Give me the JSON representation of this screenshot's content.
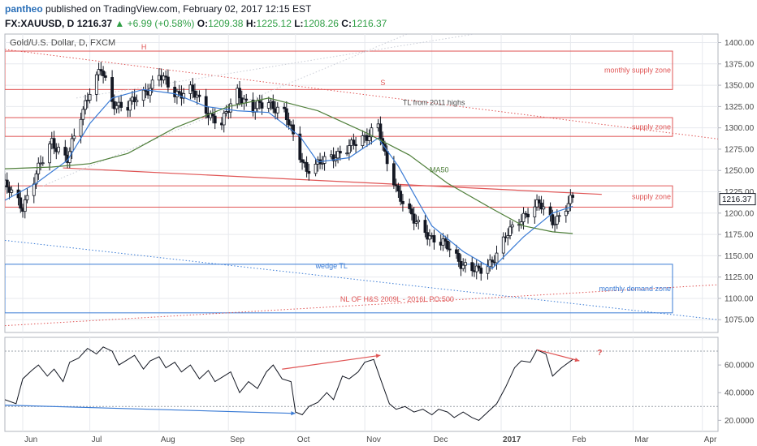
{
  "header": {
    "author": "pantheo",
    "published_text": "published on TradingView.com, February 02, 2017 12:15 EST",
    "symbol": "FX:XAUUSD, D",
    "last": "1216.37",
    "change": "+6.99 (+0.58%)",
    "o_label": "O:",
    "o_value": "1209.38",
    "h_label": "H:",
    "h_value": "1225.12",
    "l_label": "L:",
    "l_value": "1208.26",
    "c_label": "C:",
    "c_value": "1216.37",
    "up_arrow": "▲"
  },
  "colors": {
    "bull": "#ffffff",
    "bear": "#131722",
    "wick": "#131722",
    "ma_fast": "#3a7bd5",
    "ma50": "#4f7f3a",
    "supply": "#e05555",
    "demand": "#3a7bd5",
    "grid": "#e7e9ee",
    "axis_text": "#4a4a4a",
    "last_price_box": "#ffffff"
  },
  "chart_data": [
    {
      "type": "candlestick",
      "title": "Gold/U.S. Dollar, D, FXCM",
      "y_ticks": [
        1075,
        1100,
        1125,
        1150,
        1175,
        1200,
        1225,
        1250,
        1275,
        1300,
        1325,
        1350,
        1375,
        1400
      ],
      "y_tick_labels": [
        "1075.00",
        "1100.00",
        "1125.00",
        "1150.00",
        "1175.00",
        "1200.00",
        "1225.00",
        "1250.00",
        "1275.00",
        "1300.00",
        "1325.00",
        "1350.00",
        "1375.00",
        "1400.00"
      ],
      "ylim": [
        1060,
        1410
      ],
      "last_price_label": "1216.37",
      "last_price": 1216.37,
      "x_tick_labels": [
        "Jun",
        "Jul",
        "Aug",
        "Sep",
        "Oct",
        "Nov",
        "Dec",
        "2017",
        "Feb",
        "Mar",
        "Apr"
      ],
      "x_tick_dates": [
        "2016-06-01",
        "2016-07-01",
        "2016-08-01",
        "2016-09-01",
        "2016-10-01",
        "2016-11-01",
        "2016-12-01",
        "2017-01-01",
        "2017-02-01",
        "2017-03-01",
        "2017-04-01"
      ],
      "x_range": [
        "2016-05-24",
        "2017-04-08"
      ],
      "close_series": {
        "dates": [
          "2016-05-24",
          "2016-06-01",
          "2016-06-07",
          "2016-06-14",
          "2016-06-21",
          "2016-06-27",
          "2016-07-01",
          "2016-07-06",
          "2016-07-11",
          "2016-07-18",
          "2016-07-25",
          "2016-08-01",
          "2016-08-08",
          "2016-08-15",
          "2016-08-22",
          "2016-08-29",
          "2016-09-05",
          "2016-09-12",
          "2016-09-19",
          "2016-09-26",
          "2016-10-03",
          "2016-10-06",
          "2016-10-11",
          "2016-10-18",
          "2016-10-25",
          "2016-11-01",
          "2016-11-07",
          "2016-11-10",
          "2016-11-16",
          "2016-11-23",
          "2016-12-01",
          "2016-12-08",
          "2016-12-15",
          "2016-12-22",
          "2016-12-28",
          "2017-01-04",
          "2017-01-11",
          "2017-01-18",
          "2017-01-24",
          "2017-01-27",
          "2017-02-02"
        ],
        "values": [
          1232,
          1208,
          1245,
          1285,
          1262,
          1315,
          1345,
          1368,
          1330,
          1325,
          1340,
          1362,
          1340,
          1345,
          1320,
          1305,
          1342,
          1322,
          1330,
          1318,
          1268,
          1252,
          1256,
          1268,
          1276,
          1290,
          1303,
          1265,
          1225,
          1190,
          1172,
          1160,
          1140,
          1130,
          1145,
          1175,
          1198,
          1210,
          1192,
          1196,
          1216.37
        ]
      },
      "ma_fast": {
        "name": "",
        "dates": [
          "2016-05-24",
          "2016-06-07",
          "2016-06-21",
          "2016-07-01",
          "2016-07-11",
          "2016-07-25",
          "2016-08-08",
          "2016-08-22",
          "2016-09-05",
          "2016-09-19",
          "2016-10-03",
          "2016-10-11",
          "2016-10-25",
          "2016-11-07",
          "2016-11-16",
          "2016-12-01",
          "2016-12-15",
          "2016-12-28",
          "2017-01-11",
          "2017-01-24",
          "2017-02-02"
        ],
        "values": [
          1215,
          1235,
          1262,
          1305,
          1335,
          1345,
          1340,
          1325,
          1320,
          1318,
          1290,
          1260,
          1265,
          1288,
          1255,
          1185,
          1155,
          1135,
          1172,
          1200,
          1208
        ]
      },
      "ma50": {
        "name": "MA50",
        "dates": [
          "2016-05-24",
          "2016-06-14",
          "2016-07-01",
          "2016-07-18",
          "2016-08-08",
          "2016-09-01",
          "2016-09-19",
          "2016-10-11",
          "2016-11-01",
          "2016-11-21",
          "2016-12-08",
          "2016-12-28",
          "2017-01-11",
          "2017-01-24",
          "2017-02-02"
        ],
        "values": [
          1252,
          1254,
          1258,
          1270,
          1300,
          1325,
          1335,
          1320,
          1295,
          1268,
          1235,
          1205,
          1185,
          1178,
          1176
        ]
      },
      "zones": [
        {
          "label": "monthly supply zone",
          "low": 1345,
          "high": 1390,
          "color": "supply"
        },
        {
          "label": "supply zone",
          "low": 1290,
          "high": 1312,
          "color": "supply"
        },
        {
          "label": "supply zone",
          "low": 1207,
          "high": 1232,
          "color": "supply"
        },
        {
          "label": "monthly demand zone",
          "low": 1083,
          "high": 1140,
          "color": "demand"
        }
      ],
      "annotations": [
        {
          "text": "H",
          "date": "2016-07-24",
          "price": 1392,
          "color": "supply"
        },
        {
          "text": "S",
          "date": "2016-11-08",
          "price": 1350,
          "color": "supply"
        },
        {
          "text": "TL from 2011 highs",
          "date": "2016-11-18",
          "price": 1327,
          "color": "axis_text"
        },
        {
          "text": "MA50",
          "date": "2016-11-30",
          "price": 1248,
          "color": "ma50"
        },
        {
          "text": "wedge TL",
          "date": "2016-10-10",
          "price": 1135,
          "color": "demand"
        },
        {
          "text": "NL OF H&S 2009L - 2016L PO:500",
          "date": "2016-10-21",
          "price": 1096,
          "color": "supply"
        }
      ],
      "trendlines": [
        {
          "from": [
            "2016-05-24",
            1392
          ],
          "to": [
            "2017-04-08",
            1287
          ],
          "style": "dotted",
          "color": "supply"
        },
        {
          "from": [
            "2016-06-19",
            1253
          ],
          "to": [
            "2017-02-15",
            1222
          ],
          "style": "solid",
          "color": "supply"
        },
        {
          "from": [
            "2016-05-24",
            1068
          ],
          "to": [
            "2017-04-08",
            1116
          ],
          "style": "dotted",
          "color": "supply"
        },
        {
          "from": [
            "2016-05-24",
            1168
          ],
          "to": [
            "2017-04-08",
            1075
          ],
          "style": "dotted",
          "color": "demand"
        },
        {
          "from": [
            "2016-06-10",
            1232
          ],
          "to": [
            "2016-11-20",
            1410
          ],
          "style": "dotted",
          "color": "grid"
        },
        {
          "from": [
            "2016-06-25",
            1335
          ],
          "to": [
            "2016-12-20",
            1410
          ],
          "style": "dotted",
          "color": "grid"
        }
      ]
    },
    {
      "type": "line",
      "title": "",
      "ylim": [
        12,
        80
      ],
      "y_ticks": [
        20,
        40,
        60
      ],
      "y_tick_labels": [
        "20.0000",
        "40.0000",
        "60.0000"
      ],
      "levels": [
        70,
        30
      ],
      "series": [
        {
          "name": "",
          "x": [
            "2016-05-24",
            "2016-05-29",
            "2016-06-01",
            "2016-06-05",
            "2016-06-08",
            "2016-06-12",
            "2016-06-15",
            "2016-06-19",
            "2016-06-22",
            "2016-06-26",
            "2016-06-30",
            "2016-07-04",
            "2016-07-07",
            "2016-07-11",
            "2016-07-14",
            "2016-07-18",
            "2016-07-21",
            "2016-07-25",
            "2016-07-28",
            "2016-08-01",
            "2016-08-04",
            "2016-08-08",
            "2016-08-11",
            "2016-08-15",
            "2016-08-19",
            "2016-08-23",
            "2016-08-26",
            "2016-08-30",
            "2016-09-02",
            "2016-09-06",
            "2016-09-10",
            "2016-09-14",
            "2016-09-18",
            "2016-09-21",
            "2016-09-25",
            "2016-09-29",
            "2016-10-01",
            "2016-10-04",
            "2016-10-07",
            "2016-10-11",
            "2016-10-15",
            "2016-10-18",
            "2016-10-22",
            "2016-10-25",
            "2016-10-29",
            "2016-11-01",
            "2016-11-05",
            "2016-11-08",
            "2016-11-12",
            "2016-11-15",
            "2016-11-19",
            "2016-11-23",
            "2016-11-27",
            "2016-12-01",
            "2016-12-04",
            "2016-12-08",
            "2016-12-11",
            "2016-12-15",
            "2016-12-19",
            "2016-12-22",
            "2016-12-26",
            "2016-12-30",
            "2017-01-03",
            "2017-01-07",
            "2017-01-10",
            "2017-01-14",
            "2017-01-17",
            "2017-01-21",
            "2017-01-24",
            "2017-01-28",
            "2017-02-02"
          ],
          "values": [
            35,
            32,
            50,
            56,
            60,
            52,
            57,
            48,
            62,
            65,
            72,
            68,
            73,
            70,
            60,
            64,
            67,
            57,
            63,
            66,
            58,
            62,
            55,
            60,
            50,
            56,
            48,
            52,
            55,
            40,
            48,
            43,
            55,
            60,
            50,
            48,
            26,
            24,
            30,
            33,
            40,
            35,
            52,
            50,
            55,
            62,
            64,
            50,
            32,
            28,
            30,
            26,
            28,
            24,
            28,
            26,
            22,
            26,
            22,
            20,
            26,
            32,
            44,
            58,
            63,
            62,
            71,
            68,
            52,
            58,
            64
          ]
        }
      ],
      "annotations": [
        {
          "text": "?",
          "date": "2017-02-13",
          "value": 67,
          "color": "supply"
        }
      ],
      "trendlines": [
        {
          "from": [
            "2016-05-24",
            31
          ],
          "to": [
            "2016-10-01",
            25
          ],
          "color": "demand"
        },
        {
          "from": [
            "2016-09-25",
            57
          ],
          "to": [
            "2016-11-08",
            67
          ],
          "color": "supply"
        },
        {
          "from": [
            "2017-01-17",
            71
          ],
          "to": [
            "2017-02-05",
            63
          ],
          "color": "supply"
        }
      ]
    }
  ]
}
